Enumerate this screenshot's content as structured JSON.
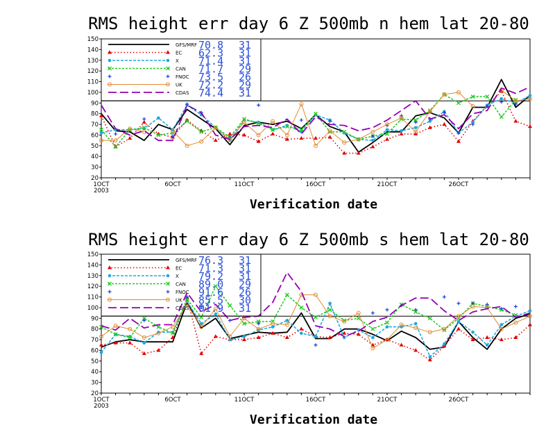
{
  "colors": {
    "GFS/MRF": "#000000",
    "EC": "#e00000",
    "X": "#1ea7e0",
    "CAN": "#22cc22",
    "FNOC": "#1a3be0",
    "UK": "#e08a30",
    "CDAS": "#9400b4",
    "legend_value": "#2a4fd8"
  },
  "chart_data": [
    {
      "type": "line",
      "title": "RMS height err   day 6  Z 500mb  n hem  lat 20-80",
      "xlabel": "Verification date",
      "ylabel": "",
      "ylim": [
        20,
        150
      ],
      "yticks": [
        20,
        30,
        40,
        50,
        60,
        70,
        80,
        90,
        100,
        110,
        120,
        130,
        140,
        150
      ],
      "xlim": [
        1,
        31
      ],
      "xticks": [
        {
          "x": 1,
          "label": "1OCT",
          "sub": "2003"
        },
        {
          "x": 6,
          "label": "6OCT"
        },
        {
          "x": 11,
          "label": "11OCT"
        },
        {
          "x": 16,
          "label": "16OCT"
        },
        {
          "x": 21,
          "label": "21OCT"
        },
        {
          "x": 26,
          "label": "26OCT"
        }
      ],
      "reference_line": 92,
      "legend_placement": "top-left",
      "series": [
        {
          "name": "GFS/MRF",
          "stat": "70.8",
          "count": "31",
          "values": [
            80,
            64,
            63,
            55,
            70,
            65,
            84,
            75,
            66,
            51,
            69,
            72,
            70,
            73,
            66,
            79,
            68,
            63,
            44,
            53,
            63,
            63,
            78,
            81,
            76,
            62,
            86,
            86,
            112,
            86,
            97
          ]
        },
        {
          "name": "EC",
          "stat": "62.3",
          "count": "31",
          "values": [
            78,
            49,
            57,
            72,
            61,
            58,
            74,
            64,
            55,
            61,
            60,
            54,
            61,
            56,
            57,
            57,
            58,
            43,
            43,
            49,
            56,
            61,
            61,
            67,
            70,
            54,
            73,
            87,
            101,
            73,
            68
          ]
        },
        {
          "name": "X",
          "stat": "71.4",
          "count": "31",
          "values": [
            62,
            65,
            65,
            66,
            76,
            65,
            88,
            79,
            67,
            55,
            74,
            72,
            65,
            69,
            63,
            79,
            74,
            62,
            56,
            55,
            65,
            64,
            67,
            73,
            82,
            62,
            72,
            88,
            94,
            90,
            97
          ]
        },
        {
          "name": "CAN",
          "stat": "71.7",
          "count": "29",
          "values": [
            65,
            49,
            65,
            67,
            60,
            62,
            73,
            63,
            67,
            58,
            75,
            71,
            65,
            68,
            65,
            80,
            63,
            63,
            56,
            59,
            61,
            75,
            74,
            83,
            98,
            90,
            96,
            96,
            77,
            93,
            null
          ]
        },
        {
          "name": "FNOC",
          "stat": "73.5",
          "count": "26",
          "values": [
            null,
            61,
            null,
            75,
            null,
            59,
            89,
            81,
            null,
            58,
            null,
            88,
            null,
            null,
            74,
            null,
            73,
            null,
            null,
            59,
            69,
            78,
            72,
            75,
            81,
            62,
            70,
            87,
            91,
            89,
            null
          ]
        },
        {
          "name": "UK",
          "stat": "72.2",
          "count": "29",
          "values": [
            55,
            55,
            66,
            63,
            null,
            64,
            50,
            54,
            67,
            56,
            72,
            60,
            73,
            60,
            89,
            50,
            64,
            53,
            56,
            63,
            70,
            76,
            63,
            82,
            98,
            100,
            87,
            null,
            102,
            92,
            94
          ]
        },
        {
          "name": "CDAS",
          "stat": "74.4",
          "count": "31",
          "values": [
            88,
            66,
            60,
            64,
            55,
            55,
            88,
            81,
            60,
            56,
            68,
            69,
            67,
            75,
            61,
            77,
            70,
            69,
            64,
            67,
            74,
            83,
            92,
            75,
            79,
            66,
            80,
            83,
            104,
            99,
            105
          ]
        }
      ]
    },
    {
      "type": "line",
      "title": "RMS height err   day 6  Z 500mb  s hem  lat 20-80",
      "xlabel": "Verification date",
      "ylabel": "",
      "ylim": [
        20,
        150
      ],
      "yticks": [
        20,
        30,
        40,
        50,
        60,
        70,
        80,
        90,
        100,
        110,
        120,
        130,
        140,
        150
      ],
      "xlim": [
        1,
        31
      ],
      "xticks": [
        {
          "x": 1,
          "label": "1OCT",
          "sub": "2003"
        },
        {
          "x": 6,
          "label": "6OCT"
        },
        {
          "x": 11,
          "label": "11OCT"
        },
        {
          "x": 16,
          "label": "16OCT"
        },
        {
          "x": 21,
          "label": "21OCT"
        },
        {
          "x": 26,
          "label": "26OCT"
        }
      ],
      "reference_line": 92,
      "legend_placement": "top-left",
      "series": [
        {
          "name": "GFS/MRF",
          "stat": "76.3",
          "count": "31",
          "values": [
            63,
            68,
            70,
            68,
            68,
            68,
            105,
            81,
            90,
            71,
            74,
            77,
            76,
            77,
            95,
            71,
            71,
            80,
            80,
            75,
            69,
            78,
            72,
            61,
            63,
            87,
            72,
            61,
            80,
            90,
            94
          ]
        },
        {
          "name": "EC",
          "stat": "71.3",
          "count": "31",
          "values": [
            65,
            67,
            67,
            57,
            60,
            72,
            109,
            57,
            73,
            70,
            70,
            72,
            76,
            72,
            80,
            73,
            72,
            76,
            75,
            65,
            70,
            65,
            60,
            51,
            64,
            80,
            70,
            72,
            70,
            72,
            84
          ]
        },
        {
          "name": "X",
          "stat": "79.2",
          "count": "31",
          "values": [
            58,
            75,
            73,
            67,
            77,
            77,
            106,
            85,
            94,
            70,
            73,
            79,
            82,
            88,
            76,
            73,
            104,
            72,
            79,
            72,
            82,
            82,
            85,
            54,
            66,
            87,
            77,
            65,
            84,
            92,
            97
          ]
        },
        {
          "name": "CAN",
          "stat": "89.0",
          "count": "29",
          "values": [
            82,
            75,
            72,
            90,
            82,
            76,
            108,
            91,
            120,
            102,
            85,
            87,
            87,
            112,
            100,
            91,
            98,
            88,
            90,
            80,
            86,
            103,
            96,
            90,
            79,
            90,
            104,
            101,
            98,
            93,
            null
          ]
        },
        {
          "name": "FNOC",
          "stat": "91.6",
          "count": "26",
          "values": [
            null,
            null,
            null,
            88,
            null,
            null,
            110,
            101,
            null,
            88,
            null,
            85,
            null,
            null,
            null,
            65,
            null,
            null,
            null,
            95,
            98,
            102,
            98,
            null,
            110,
            104,
            104,
            103,
            99,
            101,
            null
          ]
        },
        {
          "name": "UK",
          "stat": "85.5",
          "count": "30",
          "values": [
            73,
            83,
            80,
            72,
            76,
            82,
            103,
            82,
            99,
            73,
            90,
            80,
            85,
            84,
            112,
            112,
            92,
            87,
            95,
            62,
            70,
            84,
            81,
            77,
            80,
            92,
            101,
            100,
            80,
            86,
            92
          ]
        },
        {
          "name": "CDAS",
          "stat": "91.9",
          "count": "31",
          "values": [
            83,
            79,
            90,
            81,
            84,
            84,
            114,
            96,
            103,
            88,
            91,
            92,
            105,
            133,
            115,
            83,
            80,
            73,
            78,
            87,
            91,
            102,
            109,
            109,
            97,
            88,
            96,
            99,
            101,
            91,
            95
          ]
        }
      ]
    }
  ]
}
